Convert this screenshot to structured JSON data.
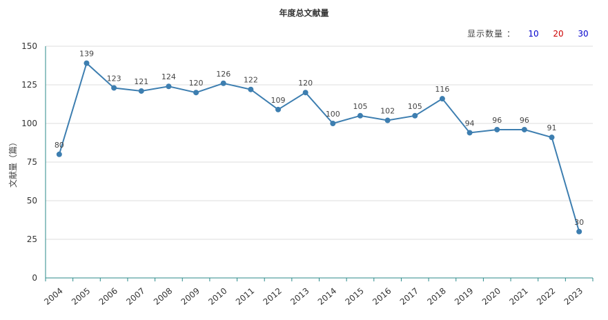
{
  "title": "年度总文献量",
  "count_selector": {
    "label": "显示数量 ：",
    "options": [
      {
        "label": "10",
        "color": "#0000cc"
      },
      {
        "label": "20",
        "color": "#cc0000"
      },
      {
        "label": "30",
        "color": "#0000cc"
      }
    ]
  },
  "chart_data": {
    "type": "line",
    "title": "年度总文献量",
    "xlabel": "",
    "ylabel": "文献量（篇）",
    "ylim": [
      0,
      150
    ],
    "yticks": [
      0,
      25,
      50,
      75,
      100,
      125,
      150
    ],
    "grid": true,
    "line_color": "#3d7eb0",
    "categories": [
      "2004",
      "2005",
      "2006",
      "2007",
      "2008",
      "2009",
      "2010",
      "2011",
      "2012",
      "2013",
      "2014",
      "2015",
      "2016",
      "2017",
      "2018",
      "2019",
      "2020",
      "2021",
      "2022",
      "2023"
    ],
    "values": [
      80,
      139,
      123,
      121,
      124,
      120,
      126,
      122,
      109,
      120,
      100,
      105,
      102,
      105,
      116,
      94,
      96,
      96,
      91,
      30
    ]
  }
}
